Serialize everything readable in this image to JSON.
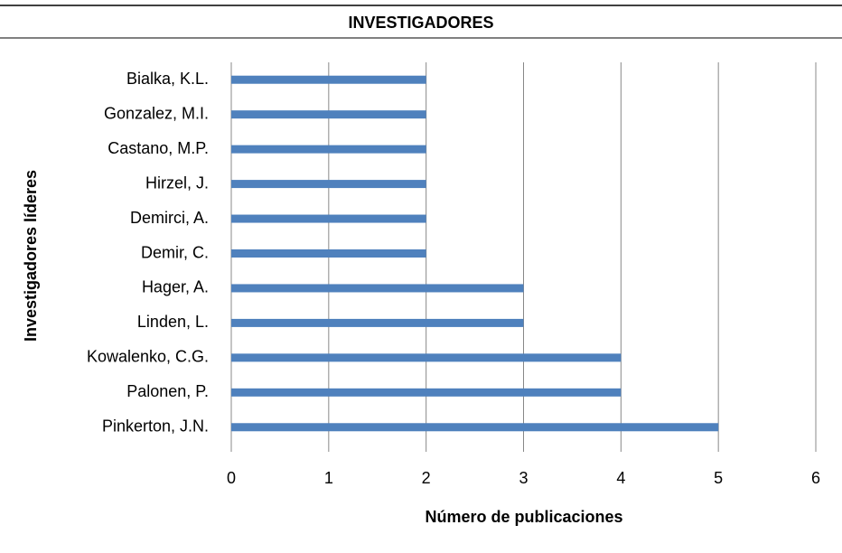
{
  "chart_data": {
    "type": "bar",
    "orientation": "horizontal",
    "title": "INVESTIGADORES",
    "x_label": "Número de publicaciones",
    "y_label": "Investigadores líderes",
    "categories": [
      "Bialka, K.L.",
      "Gonzalez, M.I.",
      "Castano, M.P.",
      "Hirzel, J.",
      "Demirci, A.",
      "Demir, C.",
      "Hager, A.",
      "Linden, L.",
      "Kowalenko, C.G.",
      "Palonen, P.",
      "Pinkerton, J.N."
    ],
    "values": [
      2,
      2,
      2,
      2,
      2,
      2,
      3,
      3,
      4,
      4,
      5
    ],
    "color": "#4f81bd",
    "xlim": [
      0,
      6
    ],
    "xticks": [
      0,
      1,
      2,
      3,
      4,
      5,
      6
    ],
    "grid": true
  }
}
